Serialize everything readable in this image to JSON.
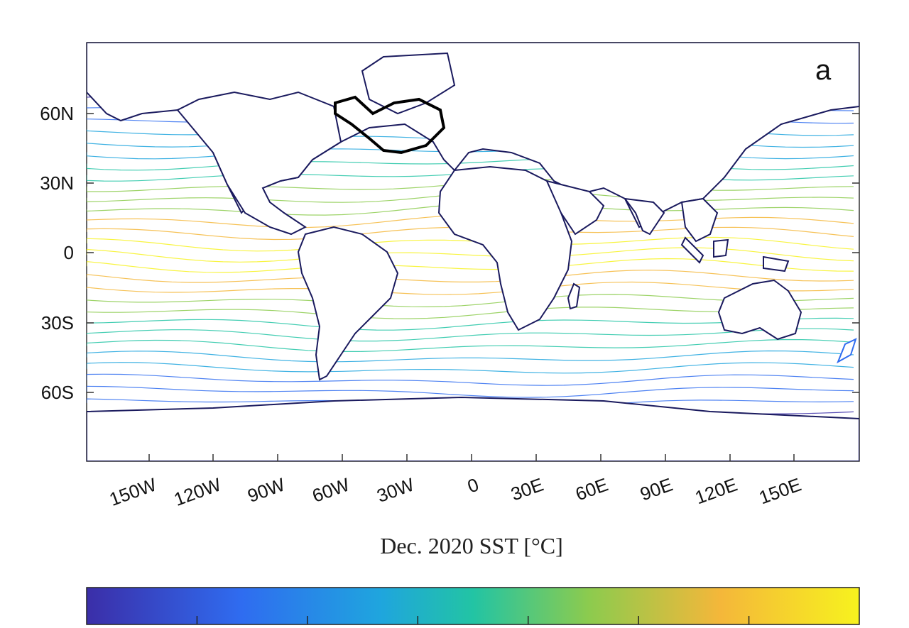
{
  "panel_label": "a",
  "x_axis_label": "Dec. 2020 SST [°C]",
  "lat_ticks": [
    "60N",
    "30N",
    "0",
    "30S",
    "60S"
  ],
  "lon_ticks": [
    "150W",
    "120W",
    "90W",
    "60W",
    "30W",
    "0",
    "30E",
    "60E",
    "90E",
    "120E",
    "150E"
  ],
  "colorbar": {
    "colors": [
      "#3b2ea8",
      "#2f6cf0",
      "#1fa5de",
      "#22c4a4",
      "#8ccb4e",
      "#f4b73a",
      "#f7f21e"
    ],
    "tick_count": 6
  },
  "map_colors": {
    "background": "#ffffff",
    "coastline": "#1a1a5e",
    "highlight_region": "#000000"
  },
  "highlighted_region": "North Atlantic subpolar gyre"
}
